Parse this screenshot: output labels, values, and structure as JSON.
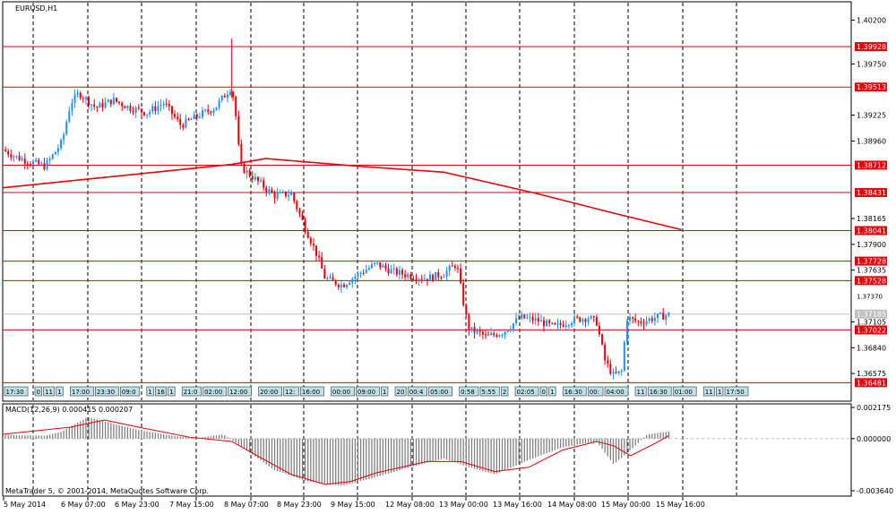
{
  "window": {
    "symbol_title": "EURUSD,H1",
    "indicator_title": "MACD(12,26,9) 0.000415 0.000207",
    "copyright": "MetaTrader 5, © 2001-2014, MetaQuotes Software Corp."
  },
  "colors": {
    "bull": "#1e90ff",
    "bear": "#e8000b",
    "level_line": "#e8000b",
    "moving_average": "#e8000b",
    "macd_hist": "#808080",
    "macd_signal": "#e8000b",
    "current_price": "#c0c0c0",
    "event_marker_fill": "#bfe3e8"
  },
  "price_axis": {
    "ticks": [
      "1.40200",
      "1.39750",
      "1.39225",
      "1.38960",
      "1.38165",
      "1.37900",
      "1.37635",
      "1.37105",
      "1.36840",
      "1.36575"
    ],
    "horizontal_levels": [
      "1.39928",
      "1.39513",
      "1.38712",
      "1.38431",
      "1.38041",
      "1.37728",
      "1.37528",
      "1.37022",
      "1.36481"
    ],
    "current_price": "1.37185",
    "hidden_tick": "1.37370"
  },
  "macd_axis": {
    "ticks": [
      "0.002175",
      "0.000000",
      "-0.003640"
    ]
  },
  "time_axis": {
    "labels": [
      "5 May 2014",
      "6 May 07:00",
      "6 May 23:00",
      "7 May 15:00",
      "8 May 07:00",
      "8 May 23:00",
      "9 May 15:00",
      "12 May 08:00",
      "13 May 00:00",
      "13 May 16:00",
      "14 May 08:00",
      "15 May 00:00",
      "15 May 16:00"
    ]
  },
  "event_markers": [
    "17:30",
    "0",
    "11",
    "1",
    "17:00",
    "23:30",
    "09:0",
    "1",
    "16",
    "1",
    "21:0",
    "02:00",
    "12:00",
    "20:00",
    "12:",
    "16:00",
    "00:00",
    "09:00",
    "1",
    "20",
    "00:4",
    "05:00",
    "0:58",
    "5:55",
    "2",
    "02:05",
    "0",
    "1",
    "16:30",
    "00:",
    "04:00",
    "11",
    "16:30",
    "01:00",
    "11",
    "1",
    "17:50"
  ],
  "chart_data": {
    "type": "candlestick",
    "title": "EURUSD,H1",
    "price_range": [
      1.3653,
      1.4025
    ],
    "moving_average": [
      {
        "t": 0,
        "price": 1.3848
      },
      {
        "t": 0.27,
        "price": 1.3872
      },
      {
        "t": 0.31,
        "price": 1.3878
      },
      {
        "t": 0.42,
        "price": 1.387
      },
      {
        "t": 0.52,
        "price": 1.3864
      },
      {
        "t": 0.63,
        "price": 1.3842
      },
      {
        "t": 0.72,
        "price": 1.3822
      },
      {
        "t": 0.8,
        "price": 1.3805
      }
    ],
    "price_path": [
      [
        0,
        1.3887
      ],
      [
        0.02,
        1.3878
      ],
      [
        0.05,
        1.387
      ],
      [
        0.07,
        1.3895
      ],
      [
        0.08,
        1.3935
      ],
      [
        0.09,
        1.3945
      ],
      [
        0.11,
        1.393
      ],
      [
        0.13,
        1.3938
      ],
      [
        0.15,
        1.393
      ],
      [
        0.17,
        1.3925
      ],
      [
        0.19,
        1.3935
      ],
      [
        0.21,
        1.3912
      ],
      [
        0.23,
        1.3922
      ],
      [
        0.25,
        1.393
      ],
      [
        0.27,
        1.3952
      ],
      [
        0.275,
        1.392
      ],
      [
        0.28,
        1.387
      ],
      [
        0.3,
        1.3855
      ],
      [
        0.32,
        1.384
      ],
      [
        0.34,
        1.3842
      ],
      [
        0.355,
        1.381
      ],
      [
        0.37,
        1.378
      ],
      [
        0.38,
        1.3755
      ],
      [
        0.4,
        1.3748
      ],
      [
        0.42,
        1.376
      ],
      [
        0.44,
        1.377
      ],
      [
        0.46,
        1.3762
      ],
      [
        0.48,
        1.3758
      ],
      [
        0.5,
        1.3755
      ],
      [
        0.52,
        1.376
      ],
      [
        0.535,
        1.377
      ],
      [
        0.545,
        1.372
      ],
      [
        0.55,
        1.3702
      ],
      [
        0.56,
        1.37
      ],
      [
        0.57,
        1.3695
      ],
      [
        0.59,
        1.37
      ],
      [
        0.61,
        1.3715
      ],
      [
        0.63,
        1.3712
      ],
      [
        0.65,
        1.3705
      ],
      [
        0.67,
        1.3712
      ],
      [
        0.69,
        1.3715
      ],
      [
        0.7,
        1.371
      ],
      [
        0.71,
        1.367
      ],
      [
        0.72,
        1.3655
      ],
      [
        0.73,
        1.366
      ],
      [
        0.735,
        1.3715
      ],
      [
        0.75,
        1.371
      ],
      [
        0.77,
        1.3715
      ],
      [
        0.785,
        1.3718
      ]
    ],
    "macd": {
      "range": [
        -0.00364,
        0.002175
      ],
      "histogram_path": [
        [
          0,
          0.00025
        ],
        [
          0.05,
          0.0002
        ],
        [
          0.07,
          0.0005
        ],
        [
          0.1,
          0.0015
        ],
        [
          0.12,
          0.0012
        ],
        [
          0.16,
          0.0006
        ],
        [
          0.2,
          0.0002
        ],
        [
          0.23,
          5e-05
        ],
        [
          0.26,
          0.0003
        ],
        [
          0.28,
          -0.0005
        ],
        [
          0.32,
          -0.0022
        ],
        [
          0.36,
          -0.003
        ],
        [
          0.4,
          -0.0033
        ],
        [
          0.44,
          -0.0027
        ],
        [
          0.48,
          -0.002
        ],
        [
          0.52,
          -0.0014
        ],
        [
          0.55,
          -0.002
        ],
        [
          0.58,
          -0.0025
        ],
        [
          0.62,
          -0.0015
        ],
        [
          0.66,
          -0.0006
        ],
        [
          0.7,
          -0.0002
        ],
        [
          0.72,
          -0.0018
        ],
        [
          0.74,
          -0.0008
        ],
        [
          0.76,
          0.0003
        ],
        [
          0.785,
          0.0005
        ]
      ],
      "signal_path": [
        [
          0,
          0.0003
        ],
        [
          0.08,
          0.0008
        ],
        [
          0.12,
          0.0013
        ],
        [
          0.16,
          0.0008
        ],
        [
          0.22,
          0.0001
        ],
        [
          0.27,
          -0.0002
        ],
        [
          0.3,
          -0.0012
        ],
        [
          0.34,
          -0.0025
        ],
        [
          0.38,
          -0.0032
        ],
        [
          0.41,
          -0.003
        ],
        [
          0.44,
          -0.0024
        ],
        [
          0.5,
          -0.0016
        ],
        [
          0.54,
          -0.0016
        ],
        [
          0.58,
          -0.0023
        ],
        [
          0.62,
          -0.002
        ],
        [
          0.66,
          -0.0008
        ],
        [
          0.7,
          -0.0002
        ],
        [
          0.72,
          -0.0005
        ],
        [
          0.74,
          -0.0012
        ],
        [
          0.77,
          -0.0003
        ],
        [
          0.785,
          0.0002
        ]
      ]
    }
  }
}
